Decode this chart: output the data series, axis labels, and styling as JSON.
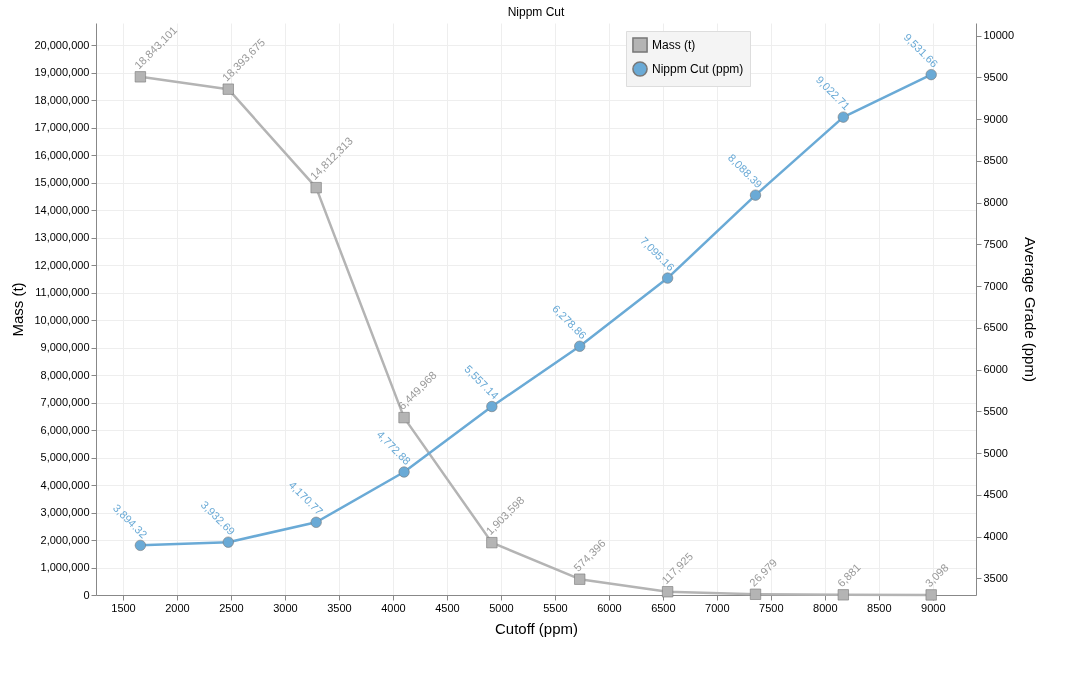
{
  "chart_data": {
    "type": "line",
    "title": "Nippm Cut",
    "xlabel": "Cutoff (ppm)",
    "ylabel": "Mass (t)",
    "y2label": "Average Grade (ppm)",
    "x": [
      1661,
      2475,
      3289,
      4103,
      4916,
      5730,
      6544,
      7358,
      8171,
      8985
    ],
    "xlim": [
      1250,
      9400
    ],
    "xticks": [
      1500,
      2000,
      2500,
      3000,
      3500,
      4000,
      4500,
      5000,
      5500,
      6000,
      6500,
      7000,
      7500,
      8000,
      8500,
      9000
    ],
    "ylim": [
      0,
      20800000
    ],
    "yticks": [
      0,
      {
        "value": 1000000,
        "label": "1,000,000"
      },
      {
        "value": 2000000,
        "label": "2,000,000"
      },
      {
        "value": 3000000,
        "label": "3,000,000"
      },
      {
        "value": 4000000,
        "label": "4,000,000"
      },
      {
        "value": 5000000,
        "label": "5,000,000"
      },
      {
        "value": 6000000,
        "label": "6,000,000"
      },
      {
        "value": 7000000,
        "label": "7,000,000"
      },
      {
        "value": 8000000,
        "label": "8,000,000"
      },
      {
        "value": 9000000,
        "label": "9,000,000"
      },
      {
        "value": 10000000,
        "label": "10,000,000"
      },
      {
        "value": 11000000,
        "label": "11,000,000"
      },
      {
        "value": 12000000,
        "label": "12,000,000"
      },
      {
        "value": 13000000,
        "label": "13,000,000"
      },
      {
        "value": 14000000,
        "label": "14,000,000"
      },
      {
        "value": 15000000,
        "label": "15,000,000"
      },
      {
        "value": 16000000,
        "label": "16,000,000"
      },
      {
        "value": 17000000,
        "label": "17,000,000"
      },
      {
        "value": 18000000,
        "label": "18,000,000"
      },
      {
        "value": 19000000,
        "label": "19,000,000"
      },
      {
        "value": 20000000,
        "label": "20,000,000"
      }
    ],
    "y2lim": [
      3300,
      10150
    ],
    "y2ticks": [
      3500,
      4000,
      4500,
      5000,
      5500,
      6000,
      6500,
      7000,
      7500,
      8000,
      8500,
      9000,
      9500,
      10000
    ],
    "grid": true,
    "legend": "top right",
    "series": [
      {
        "name": "Mass (t)",
        "color": "#b4b4b4",
        "marker": "square",
        "values": [
          18843101,
          18393675,
          14812313,
          6449968,
          1903598,
          574396,
          117925,
          26979,
          6881,
          3098
        ],
        "value_labels": [
          "18,843,101",
          "18,393,675",
          "14,812,313",
          "6,449,968",
          "1,903,598",
          "574,396",
          "117,925",
          "26,979",
          "6,881",
          "3,098"
        ]
      },
      {
        "name": "Nippm Cut (ppm)",
        "color": "#6aaad6",
        "marker": "circle",
        "axis": "y2",
        "values": [
          3894.32,
          3932.69,
          4170.77,
          4772.88,
          5557.14,
          6278.86,
          7095.16,
          8088.39,
          9022.71,
          9531.66
        ],
        "value_labels": [
          "3,894.32",
          "3,932.69",
          "4,170.77",
          "4,772.88",
          "5,557.14",
          "6,278.86",
          "7,095.16",
          "8,088.39",
          "9,022.71",
          "9,531.66"
        ]
      }
    ]
  }
}
